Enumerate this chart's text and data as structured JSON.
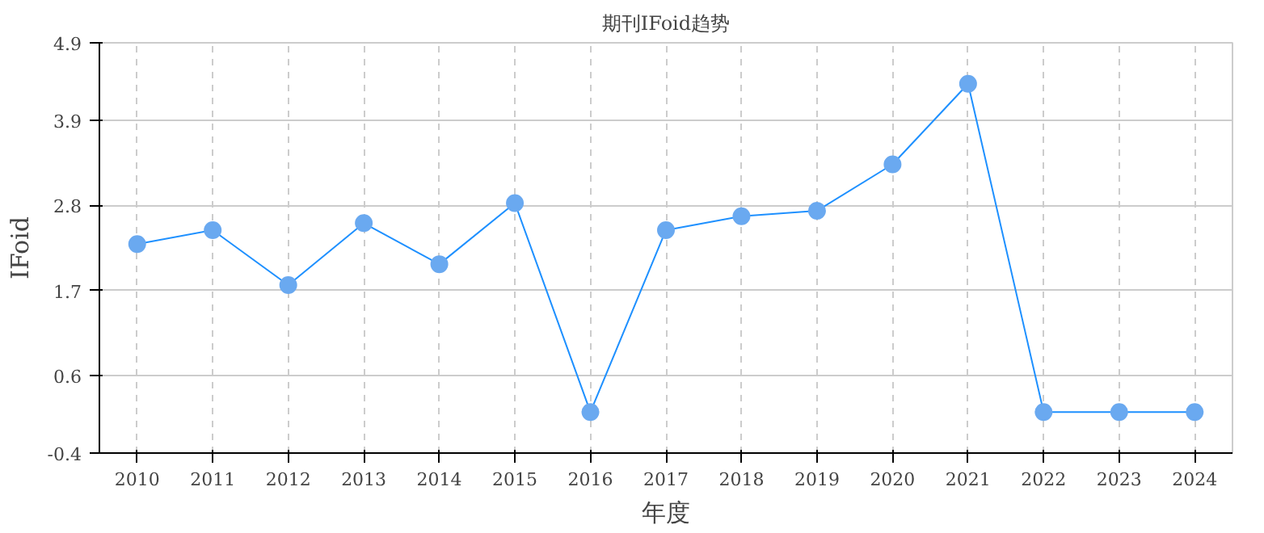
{
  "chart_data": {
    "type": "line",
    "title": "期刊IFoid趋势",
    "xlabel": "年度",
    "ylabel": "IFoid",
    "categories": [
      "2010",
      "2011",
      "2012",
      "2013",
      "2014",
      "2015",
      "2016",
      "2017",
      "2018",
      "2019",
      "2020",
      "2021",
      "2022",
      "2023",
      "2024"
    ],
    "series": [
      {
        "color": "#1e90ff",
        "values": [
          2.3,
          2.48,
          1.77,
          2.57,
          2.04,
          2.83,
          0.13,
          2.48,
          2.66,
          2.73,
          3.33,
          4.37,
          0.13,
          0.13,
          0.13
        ]
      }
    ],
    "ylim": [
      -0.4,
      4.9
    ],
    "yticks": [
      -0.4,
      0.6,
      1.7,
      2.8,
      3.9,
      4.9
    ],
    "grid": true,
    "marker": "circle",
    "line_style": "solid"
  }
}
